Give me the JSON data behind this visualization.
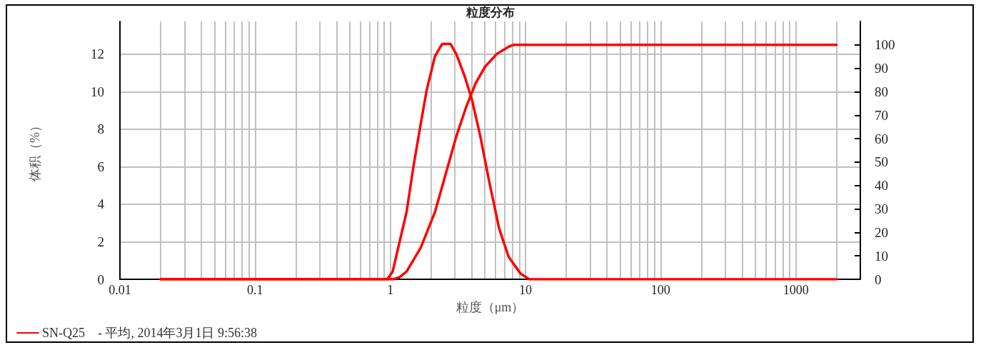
{
  "chart_data": {
    "type": "line",
    "title": "粒度分布",
    "xlabel": "粒度（μm）",
    "ylabel": "体积（%）",
    "log": "x",
    "xlim": [
      0.01,
      3000
    ],
    "xticks": [
      0.01,
      {
        "value": 0.02,
        "label": null
      },
      {
        "value": 0.03,
        "label": null
      },
      {
        "value": 0.04,
        "label": null
      },
      {
        "value": 0.05,
        "label": null
      },
      {
        "value": 0.06,
        "label": null
      },
      {
        "value": 0.07,
        "label": null
      },
      {
        "value": 0.08,
        "label": null
      },
      {
        "value": 0.09,
        "label": null
      },
      0.1,
      {
        "value": 0.2,
        "label": null
      },
      {
        "value": 0.3,
        "label": null
      },
      {
        "value": 0.4,
        "label": null
      },
      {
        "value": 0.5,
        "label": null
      },
      {
        "value": 0.6,
        "label": null
      },
      {
        "value": 0.7,
        "label": null
      },
      {
        "value": 0.8,
        "label": null
      },
      {
        "value": 0.9,
        "label": null
      },
      1,
      {
        "value": 2,
        "label": null
      },
      {
        "value": 3,
        "label": null
      },
      {
        "value": 4,
        "label": null
      },
      {
        "value": 5,
        "label": null
      },
      {
        "value": 6,
        "label": null
      },
      {
        "value": 7,
        "label": null
      },
      {
        "value": 8,
        "label": null
      },
      {
        "value": 9,
        "label": null
      },
      10,
      {
        "value": 20,
        "label": null
      },
      {
        "value": 30,
        "label": null
      },
      {
        "value": 40,
        "label": null
      },
      {
        "value": 50,
        "label": null
      },
      {
        "value": 60,
        "label": null
      },
      {
        "value": 70,
        "label": null
      },
      {
        "value": 80,
        "label": null
      },
      {
        "value": 90,
        "label": null
      },
      100,
      {
        "value": 200,
        "label": null
      },
      {
        "value": 300,
        "label": null
      },
      {
        "value": 400,
        "label": null
      },
      {
        "value": 500,
        "label": null
      },
      {
        "value": 600,
        "label": null
      },
      {
        "value": 700,
        "label": null
      },
      {
        "value": 800,
        "label": null
      },
      {
        "value": 900,
        "label": null
      },
      1000,
      {
        "value": 2000,
        "label": null
      }
    ],
    "ylim": [
      0,
      13.75
    ],
    "yticks": [
      0,
      2,
      4,
      6,
      8,
      10,
      12
    ],
    "y2lim": [
      0,
      110
    ],
    "y2ticks": [
      0,
      10,
      20,
      30,
      40,
      50,
      60,
      70,
      80,
      90,
      100
    ],
    "grid": true,
    "legend": "bottom",
    "marker": "none",
    "line_style": "solid",
    "series": [
      {
        "name": "SN-Q25    - 平均, 2014年3月1日 9:56:38",
        "color": "#ff0000",
        "x": [
          0.02,
          0.95,
          1.04,
          1.32,
          1.49,
          1.68,
          1.86,
          2.14,
          2.42,
          2.79,
          3.08,
          3.56,
          4.01,
          4.61,
          5.43,
          6.39,
          7.5,
          9.2,
          10.7,
          2000
        ],
        "values": [
          0,
          0,
          0.4,
          3.6,
          6.1,
          8.3,
          10.1,
          11.9,
          12.55,
          12.55,
          12,
          10.8,
          9.6,
          7.7,
          5.1,
          2.7,
          1.2,
          0.3,
          0,
          0
        ]
      },
      {
        "color": "#ff0000",
        "axis": "y2",
        "x": [
          0.02,
          1.05,
          1.17,
          1.32,
          1.68,
          2.14,
          2.63,
          3.08,
          3.63,
          4.26,
          5.01,
          6.13,
          7.5,
          8.13,
          2000
        ],
        "values": [
          0,
          0,
          0.9,
          3.3,
          13.5,
          28.7,
          47,
          61,
          73.3,
          83.4,
          90.6,
          96.1,
          99.2,
          100,
          100
        ]
      }
    ]
  }
}
